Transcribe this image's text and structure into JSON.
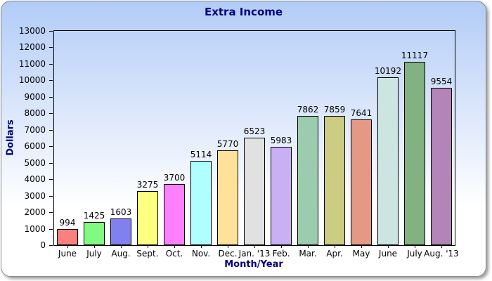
{
  "title": "Extra Income",
  "colors": {
    "title_text": "#000080",
    "axis_title_text": "#000080",
    "tick_text": "#000000",
    "plot_border": "#000000",
    "card_border": "#8a8a8a",
    "card_gradient_top": "#b2ccf7",
    "card_gradient_bottom": "#ffffff"
  },
  "chart_data": {
    "type": "bar",
    "title": "Extra Income",
    "xlabel": "Month/Year",
    "ylabel": "Dollars",
    "categories": [
      "June",
      "July",
      "Aug.",
      "Sept.",
      "Oct.",
      "Nov.",
      "Dec.",
      "Jan. '13",
      "Feb.",
      "Mar.",
      "Apr.",
      "May",
      "June",
      "July",
      "Aug. '13"
    ],
    "values": [
      994,
      1425,
      1603,
      3275,
      3700,
      5114,
      5770,
      6523,
      5983,
      7862,
      7859,
      7641,
      10192,
      11117,
      9554
    ],
    "bar_colors": [
      "#FA8080",
      "#80FA80",
      "#8080F0",
      "#FFFF80",
      "#FF80FF",
      "#B0FFFF",
      "#FFE299",
      "#E1E1E1",
      "#C9B0F5",
      "#9BCCAD",
      "#CCCC83",
      "#E59985",
      "#CCE5E0",
      "#82B282",
      "#B284B8"
    ],
    "ylim": [
      0,
      13000
    ],
    "yticks": [
      0,
      1000,
      2000,
      3000,
      4000,
      5000,
      6000,
      7000,
      8000,
      9000,
      10000,
      11000,
      12000,
      13000
    ],
    "grid": false,
    "legend": null,
    "value_labels_shown": true
  }
}
